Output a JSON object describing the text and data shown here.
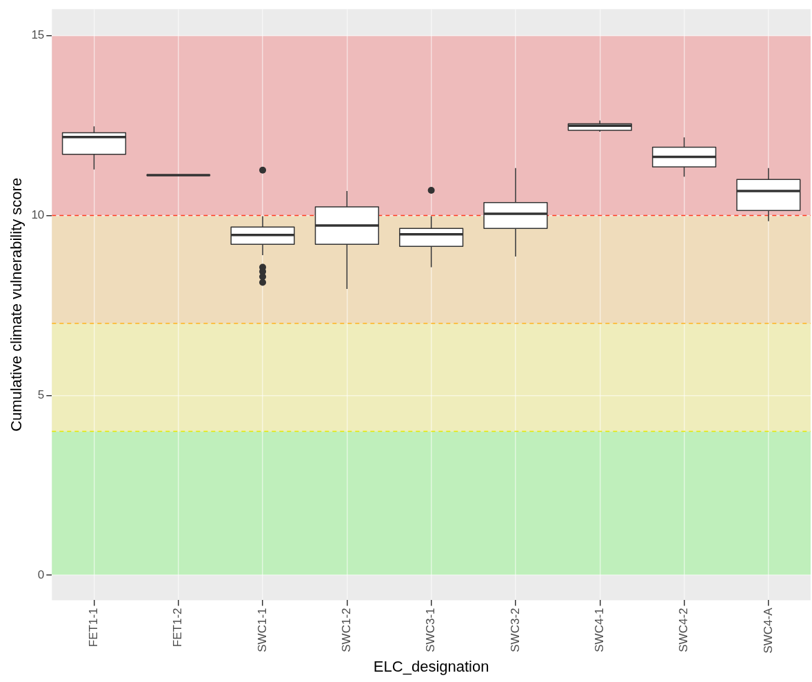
{
  "chart_data": {
    "type": "box",
    "xlabel": "ELC_designation",
    "ylabel": "Cumulative climate vulnerability score",
    "categories": [
      "FET1-1",
      "FET1-2",
      "SWC1-1",
      "SWC1-2",
      "SWC3-1",
      "SWC3-2",
      "SWC4-1",
      "SWC4-2",
      "SWC4-A"
    ],
    "boxes": [
      {
        "low": 11.28,
        "q1": 11.7,
        "median": 12.18,
        "q3": 12.3,
        "high": 12.48
      },
      {
        "low": 11.12,
        "q1": 11.12,
        "median": 11.12,
        "q3": 11.12,
        "high": 11.12
      },
      {
        "low": 8.9,
        "q1": 9.2,
        "median": 9.46,
        "q3": 9.68,
        "high": 9.98,
        "outliers": [
          11.26,
          8.56,
          8.44,
          8.3,
          8.14
        ]
      },
      {
        "low": 7.96,
        "q1": 9.2,
        "median": 9.72,
        "q3": 10.24,
        "high": 10.68
      },
      {
        "low": 8.56,
        "q1": 9.14,
        "median": 9.48,
        "q3": 9.64,
        "high": 9.98,
        "outliers": [
          10.7
        ]
      },
      {
        "low": 8.86,
        "q1": 9.64,
        "median": 10.05,
        "q3": 10.36,
        "high": 11.32
      },
      {
        "low": 12.33,
        "q1": 12.37,
        "median": 12.5,
        "q3": 12.55,
        "high": 12.64
      },
      {
        "low": 11.08,
        "q1": 11.35,
        "median": 11.63,
        "q3": 11.9,
        "high": 12.17
      },
      {
        "low": 9.84,
        "q1": 10.14,
        "median": 10.68,
        "q3": 11.0,
        "high": 11.32
      }
    ],
    "ylim": [
      -0.7,
      15.74
    ],
    "yticks": [
      0,
      5,
      10,
      15
    ],
    "grid": true,
    "bands": [
      {
        "axis": "y",
        "from": 0,
        "to": 4,
        "color": "#bfefbb"
      },
      {
        "axis": "y",
        "from": 4,
        "to": 7,
        "color": "#efedbb"
      },
      {
        "axis": "y",
        "from": 7,
        "to": 10,
        "color": "#efdcbb"
      },
      {
        "axis": "y",
        "from": 10,
        "to": 15,
        "color": "#eebbbb"
      }
    ],
    "ref_lines": [
      {
        "axis": "y",
        "value": 4,
        "color": "#e8e800",
        "line_style": "dashed"
      },
      {
        "axis": "y",
        "value": 7,
        "color": "#ffb21f",
        "line_style": "dashed"
      },
      {
        "axis": "y",
        "value": 10,
        "color": "#ff3a1f",
        "line_style": "dashed"
      }
    ]
  }
}
